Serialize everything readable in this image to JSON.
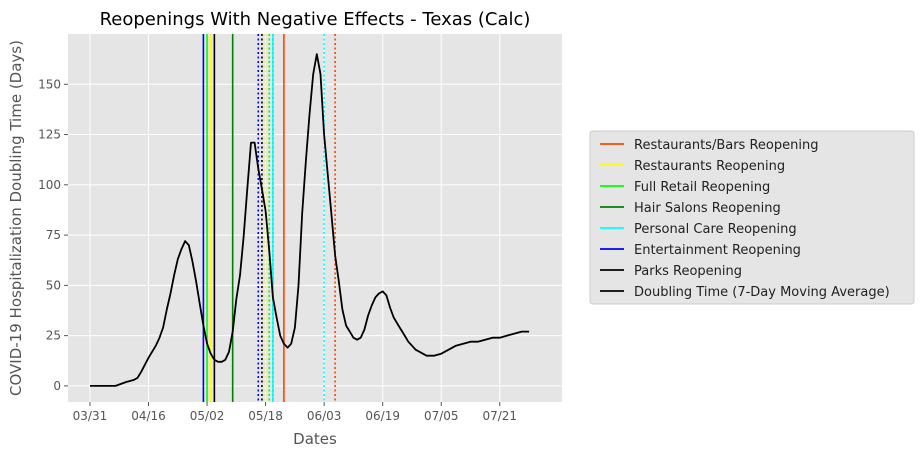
{
  "chart_data": {
    "type": "line",
    "title": "Reopenings With Negative Effects - Texas (Calc)",
    "xlabel": "Dates",
    "ylabel": "COVID-19 Hospitalization Doubling Time (Days)",
    "x_ticks": [
      "03/31",
      "04/16",
      "05/02",
      "05/18",
      "06/03",
      "06/19",
      "07/05",
      "07/21"
    ],
    "x_tick_days": [
      0,
      16,
      32,
      48,
      64,
      80,
      96,
      112
    ],
    "y_ticks": [
      0,
      25,
      50,
      75,
      100,
      125,
      150
    ],
    "xlim": [
      -6,
      129
    ],
    "ylim": [
      -8,
      175
    ],
    "grid": true,
    "legend_position": "outside-right",
    "series": [
      {
        "name": "Doubling Time (7-Day Moving Average)",
        "color": "#000000",
        "x": [
          0,
          7,
          10,
          12,
          13,
          14,
          16,
          18,
          19,
          20,
          21,
          22,
          23,
          24,
          25,
          26,
          27,
          28,
          29,
          30,
          31,
          32,
          33,
          34,
          35,
          36,
          37,
          38,
          39,
          40,
          41,
          42,
          43,
          44,
          45,
          46,
          47,
          48,
          49,
          50,
          51,
          52,
          53,
          54,
          55,
          56,
          57,
          58,
          59,
          60,
          61,
          62,
          63,
          64,
          65,
          66,
          67,
          68,
          69,
          70,
          71,
          72,
          73,
          74,
          75,
          76,
          77,
          78,
          79,
          80,
          81,
          82,
          83,
          84,
          85,
          86,
          87,
          88,
          89,
          90,
          91,
          92,
          94,
          96,
          98,
          100,
          102,
          104,
          106,
          108,
          110,
          112,
          114,
          116,
          118,
          120
        ],
        "y": [
          0,
          0,
          2,
          3,
          4,
          7,
          14,
          20,
          24,
          29,
          38,
          46,
          55,
          63,
          68,
          72,
          70,
          62,
          52,
          41,
          30,
          21,
          16,
          13,
          12,
          12,
          13,
          17,
          27,
          43,
          55,
          74,
          98,
          121,
          121,
          108,
          98,
          87,
          67,
          44,
          34,
          25,
          21,
          19,
          21,
          29,
          50,
          86,
          112,
          135,
          155,
          165,
          155,
          125,
          105,
          85,
          65,
          52,
          38,
          30,
          27,
          24,
          23,
          24,
          28,
          35,
          40,
          44,
          46,
          47,
          45,
          39,
          34,
          31,
          28,
          25,
          22,
          20,
          18,
          17,
          16,
          15,
          15,
          16,
          18,
          20,
          21,
          22,
          22,
          23,
          24,
          24,
          25,
          26,
          27,
          27
        ]
      }
    ],
    "reference_lines": [
      {
        "name": "Restaurants/Bars Reopening",
        "color": "#FF4500",
        "x": [
          53,
          67
        ],
        "styles": [
          "solid",
          "dotted"
        ]
      },
      {
        "name": "Restaurants Reopening",
        "color": "#FFFF00",
        "x": [
          33,
          48
        ],
        "styles": [
          "solid",
          "dotted"
        ]
      },
      {
        "name": "Full Retail Reopening",
        "color": "#00FF00",
        "x": [
          32,
          49
        ],
        "styles": [
          "solid",
          "dotted"
        ]
      },
      {
        "name": "Hair Salons Reopening",
        "color": "#008000",
        "x": [
          39,
          50
        ],
        "styles": [
          "solid",
          "dotted"
        ]
      },
      {
        "name": "Personal Care Reopening",
        "color": "#00FFFF",
        "x": [
          50,
          64
        ],
        "styles": [
          "solid",
          "dotted"
        ]
      },
      {
        "name": "Entertainment Reopening",
        "color": "#0000FF",
        "x": [
          31,
          46
        ],
        "styles": [
          "solid",
          "dotted"
        ]
      },
      {
        "name": "Parks Reopening",
        "color": "#000000",
        "x": [
          34,
          47
        ],
        "styles": [
          "solid",
          "dotted"
        ]
      }
    ],
    "legend": [
      {
        "label": "Restaurants/Bars Reopening",
        "color": "#FF4500"
      },
      {
        "label": "Restaurants Reopening",
        "color": "#FFFF00"
      },
      {
        "label": "Full Retail Reopening",
        "color": "#00FF00"
      },
      {
        "label": "Hair Salons Reopening",
        "color": "#008000"
      },
      {
        "label": "Personal Care Reopening",
        "color": "#00FFFF"
      },
      {
        "label": "Entertainment Reopening",
        "color": "#0000FF"
      },
      {
        "label": "Parks Reopening",
        "color": "#000000"
      },
      {
        "label": "Doubling Time (7-Day Moving Average)",
        "color": "#000000"
      }
    ],
    "colors": {
      "plot_background": "#E5E5E5",
      "grid": "#FFFFFF"
    }
  }
}
